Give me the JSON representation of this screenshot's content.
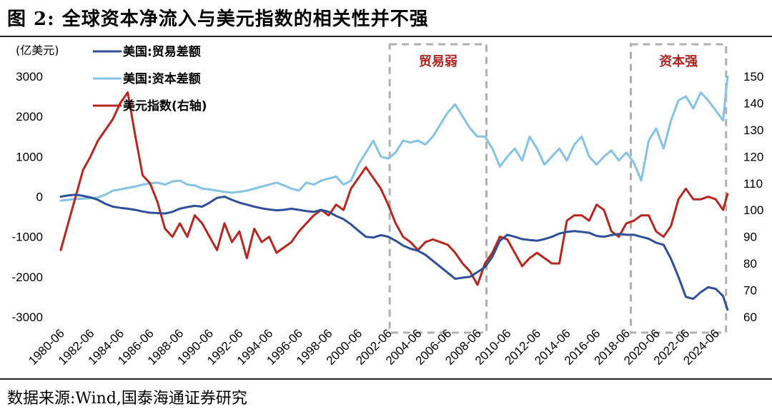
{
  "title": "图 2:  全球资本净流入与美元指数的相关性并不强",
  "source": "数据来源:Wind,国泰海通证券研究",
  "colors": {
    "trade": "#2e4f9a",
    "capital": "#84c2e6",
    "dollar": "#b8261f",
    "box": "#b0b0b0",
    "annotation": "#b22222"
  },
  "chart_data": {
    "type": "line",
    "unit_left": "(亿美元)",
    "y_left": {
      "min": -3000,
      "max": 3000,
      "ticks": [
        3000,
        2000,
        1000,
        0,
        -1000,
        -2000,
        -3000
      ]
    },
    "y_right": {
      "min": 60,
      "max": 150,
      "ticks": [
        150,
        140,
        130,
        120,
        110,
        100,
        90,
        80,
        70,
        60
      ]
    },
    "x_range": [
      1980.5,
      2025.5
    ],
    "x_ticks": [
      "1980-06",
      "1982-06",
      "1984-06",
      "1986-06",
      "1988-06",
      "1990-06",
      "1992-06",
      "1994-06",
      "1996-06",
      "1998-06",
      "2000-06",
      "2002-06",
      "2004-06",
      "2006-06",
      "2008-06",
      "2010-06",
      "2012-06",
      "2014-06",
      "2016-06",
      "2018-06",
      "2020-06",
      "2022-06",
      "2024-06"
    ],
    "legend": {
      "placement": "top-left",
      "entries": [
        "美国:贸易差额",
        "美国:资本差额",
        "美元指数(右轴)"
      ]
    },
    "annotations": [
      {
        "label": "贸易弱",
        "x_start": 2002.6,
        "x_end": 2009.1
      },
      {
        "label": "资本强",
        "x_start": 2018.8,
        "x_end": 2025.2
      }
    ],
    "series": [
      {
        "name": "美国:贸易差额",
        "axis": "left",
        "x": [
          1980.5,
          1981.0,
          1981.5,
          1982.0,
          1982.5,
          1983.0,
          1983.5,
          1984.0,
          1984.5,
          1985.0,
          1985.5,
          1986.0,
          1986.5,
          1987.0,
          1987.5,
          1988.0,
          1988.5,
          1989.0,
          1989.5,
          1990.0,
          1990.5,
          1991.0,
          1991.5,
          1992.0,
          1992.5,
          1993.0,
          1993.5,
          1994.0,
          1994.5,
          1995.0,
          1995.5,
          1996.0,
          1996.5,
          1997.0,
          1997.5,
          1998.0,
          1998.5,
          1999.0,
          1999.5,
          2000.0,
          2000.5,
          2001.0,
          2001.5,
          2002.0,
          2002.5,
          2003.0,
          2003.5,
          2004.0,
          2004.5,
          2005.0,
          2005.5,
          2006.0,
          2006.5,
          2007.0,
          2007.5,
          2008.0,
          2008.5,
          2009.0,
          2009.5,
          2010.0,
          2010.5,
          2011.0,
          2011.5,
          2012.0,
          2012.5,
          2013.0,
          2013.5,
          2014.0,
          2014.5,
          2015.0,
          2015.5,
          2016.0,
          2016.5,
          2017.0,
          2017.5,
          2018.0,
          2018.5,
          2019.0,
          2019.5,
          2020.0,
          2020.5,
          2021.0,
          2021.5,
          2022.0,
          2022.5,
          2023.0,
          2023.5,
          2024.0,
          2024.5,
          2025.0,
          2025.3
        ],
        "values": [
          0,
          30,
          50,
          20,
          -20,
          -80,
          -180,
          -250,
          -280,
          -300,
          -330,
          -370,
          -400,
          -410,
          -420,
          -380,
          -300,
          -260,
          -230,
          -250,
          -150,
          -30,
          0,
          -80,
          -150,
          -200,
          -250,
          -290,
          -320,
          -340,
          -330,
          -300,
          -330,
          -360,
          -380,
          -330,
          -380,
          -480,
          -560,
          -690,
          -850,
          -1000,
          -1020,
          -960,
          -1000,
          -1100,
          -1220,
          -1300,
          -1350,
          -1450,
          -1600,
          -1750,
          -1900,
          -2050,
          -2020,
          -2000,
          -1880,
          -1760,
          -1500,
          -1100,
          -950,
          -1000,
          -1060,
          -1080,
          -1100,
          -1060,
          -1000,
          -920,
          -880,
          -860,
          -880,
          -900,
          -980,
          -1000,
          -960,
          -930,
          -950,
          -950,
          -1000,
          -1050,
          -1150,
          -1200,
          -1550,
          -2000,
          -2500,
          -2550,
          -2380,
          -2260,
          -2300,
          -2480,
          -2820
        ]
      },
      {
        "name": "美国:资本差额",
        "axis": "left",
        "x": [
          1980.5,
          1981.0,
          1981.5,
          1982.0,
          1982.5,
          1983.0,
          1983.5,
          1984.0,
          1984.5,
          1985.0,
          1985.5,
          1986.0,
          1986.5,
          1987.0,
          1987.5,
          1988.0,
          1988.5,
          1989.0,
          1989.5,
          1990.0,
          1990.5,
          1991.0,
          1991.5,
          1992.0,
          1992.5,
          1993.0,
          1993.5,
          1994.0,
          1994.5,
          1995.0,
          1995.5,
          1996.0,
          1996.5,
          1997.0,
          1997.5,
          1998.0,
          1998.5,
          1999.0,
          1999.5,
          2000.0,
          2000.5,
          2001.0,
          2001.5,
          2002.0,
          2002.5,
          2003.0,
          2003.5,
          2004.0,
          2004.5,
          2005.0,
          2005.5,
          2006.0,
          2006.5,
          2007.0,
          2007.5,
          2008.0,
          2008.5,
          2009.0,
          2009.5,
          2010.0,
          2010.5,
          2011.0,
          2011.5,
          2012.0,
          2012.5,
          2013.0,
          2013.5,
          2014.0,
          2014.5,
          2015.0,
          2015.5,
          2016.0,
          2016.5,
          2017.0,
          2017.5,
          2018.0,
          2018.5,
          2019.0,
          2019.5,
          2020.0,
          2020.5,
          2021.0,
          2021.5,
          2022.0,
          2022.5,
          2023.0,
          2023.5,
          2024.0,
          2024.5,
          2025.0,
          2025.3
        ],
        "values": [
          -100,
          -80,
          -60,
          -50,
          -40,
          -20,
          50,
          150,
          180,
          220,
          250,
          300,
          330,
          350,
          300,
          380,
          400,
          300,
          280,
          200,
          180,
          150,
          120,
          100,
          120,
          150,
          200,
          250,
          300,
          350,
          280,
          200,
          150,
          350,
          300,
          400,
          450,
          500,
          300,
          400,
          800,
          1100,
          1400,
          1000,
          950,
          1100,
          1400,
          1350,
          1400,
          1300,
          1500,
          1800,
          2100,
          2300,
          2000,
          1700,
          1500,
          1500,
          1200,
          750,
          1000,
          1200,
          900,
          1500,
          1200,
          800,
          1000,
          1200,
          900,
          1300,
          1500,
          1000,
          800,
          1000,
          1150,
          900,
          1100,
          850,
          400,
          1400,
          1700,
          1200,
          1900,
          2400,
          2500,
          2200,
          2600,
          2400,
          2150,
          1900,
          3000
        ]
      },
      {
        "name": "美元指数(右轴)",
        "axis": "right",
        "x": [
          1980.5,
          1981.0,
          1981.5,
          1982.0,
          1982.5,
          1983.0,
          1983.5,
          1984.0,
          1984.5,
          1985.0,
          1985.5,
          1986.0,
          1986.5,
          1987.0,
          1987.5,
          1988.0,
          1988.5,
          1989.0,
          1989.5,
          1990.0,
          1990.5,
          1991.0,
          1991.5,
          1992.0,
          1992.5,
          1993.0,
          1993.5,
          1994.0,
          1994.5,
          1995.0,
          1995.5,
          1996.0,
          1996.5,
          1997.0,
          1997.5,
          1998.0,
          1998.5,
          1999.0,
          1999.5,
          2000.0,
          2000.5,
          2001.0,
          2001.5,
          2002.0,
          2002.5,
          2003.0,
          2003.5,
          2004.0,
          2004.5,
          2005.0,
          2005.5,
          2006.0,
          2006.5,
          2007.0,
          2007.5,
          2008.0,
          2008.5,
          2009.0,
          2009.5,
          2010.0,
          2010.5,
          2011.0,
          2011.5,
          2012.0,
          2012.5,
          2013.0,
          2013.5,
          2014.0,
          2014.5,
          2015.0,
          2015.5,
          2016.0,
          2016.5,
          2017.0,
          2017.5,
          2018.0,
          2018.5,
          2019.0,
          2019.5,
          2020.0,
          2020.5,
          2021.0,
          2021.5,
          2022.0,
          2022.5,
          2023.0,
          2023.5,
          2024.0,
          2024.5,
          2025.0,
          2025.3
        ],
        "values": [
          85,
          95,
          105,
          115,
          120,
          126,
          130,
          134,
          140,
          144,
          128,
          113,
          110,
          103,
          93,
          90,
          95,
          90,
          98,
          95,
          90,
          85,
          95,
          88,
          92,
          82,
          93,
          88,
          90,
          84,
          86,
          88,
          92,
          95,
          98,
          100,
          98,
          102,
          100,
          108,
          112,
          116,
          112,
          108,
          102,
          95,
          90,
          88,
          85,
          88,
          89,
          88,
          87,
          84,
          80,
          77,
          72,
          80,
          84,
          90,
          89,
          84,
          79,
          82,
          84,
          82,
          80,
          80,
          96,
          98,
          98,
          96,
          102,
          100,
          92,
          90,
          95,
          96,
          98,
          98,
          92,
          90,
          94,
          104,
          108,
          104,
          104,
          105,
          104,
          100,
          106
        ]
      }
    ]
  }
}
